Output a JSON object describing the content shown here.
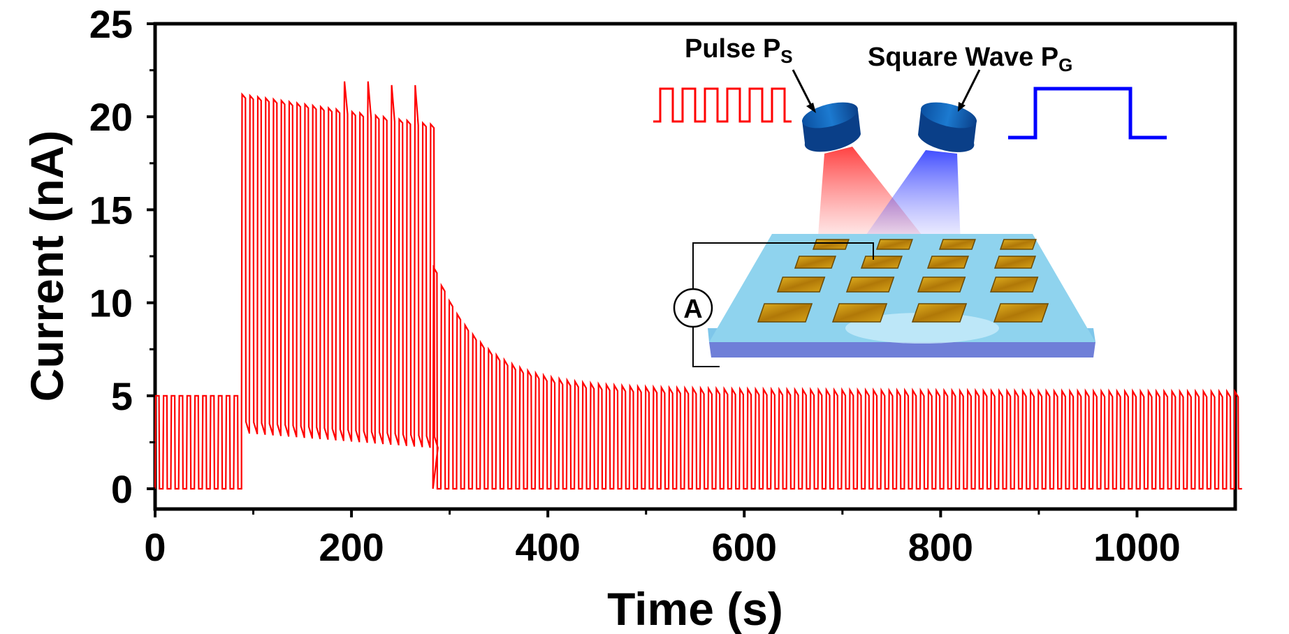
{
  "chart_data": {
    "type": "line",
    "title": "",
    "xlabel": "Time (s)",
    "ylabel": "Current (nA)",
    "xlim": [
      0,
      1100
    ],
    "ylim": [
      -1,
      25
    ],
    "xticks": [
      0,
      200,
      400,
      600,
      800,
      1000
    ],
    "yticks": [
      0,
      5,
      10,
      15,
      20,
      25
    ],
    "grid": false,
    "legend": "none",
    "series_color": "#ff0000",
    "pulse_period_s": 8,
    "segments": [
      {
        "t_start": 0,
        "t_end": 88,
        "peak_nA": 5.0,
        "baseline_nA": 0.0
      },
      {
        "t_start": 88,
        "t_end": 283,
        "peak_start_nA": 21.2,
        "peak_end_nA": 19.6,
        "baseline_start_nA": 3.0,
        "baseline_end_nA": 2.2,
        "spike_peaks_nA": [
          21.9,
          21.9,
          21.7,
          21.7
        ]
      },
      {
        "t_start": 283,
        "t_end": 1100,
        "peak_start_nA": 11.5,
        "peak_end_nA": 5.2,
        "baseline_nA": 0.0
      }
    ],
    "inset": {
      "pulse_label": "Pulse P",
      "pulse_sub": "S",
      "square_label": "Square Wave P",
      "square_sub": "G",
      "ammeter_label": "A",
      "pulse_color": "#ff0000",
      "square_color": "#0000ff",
      "substrate_color": "#8fd3ee",
      "electrode_color": "#c8960a"
    }
  }
}
